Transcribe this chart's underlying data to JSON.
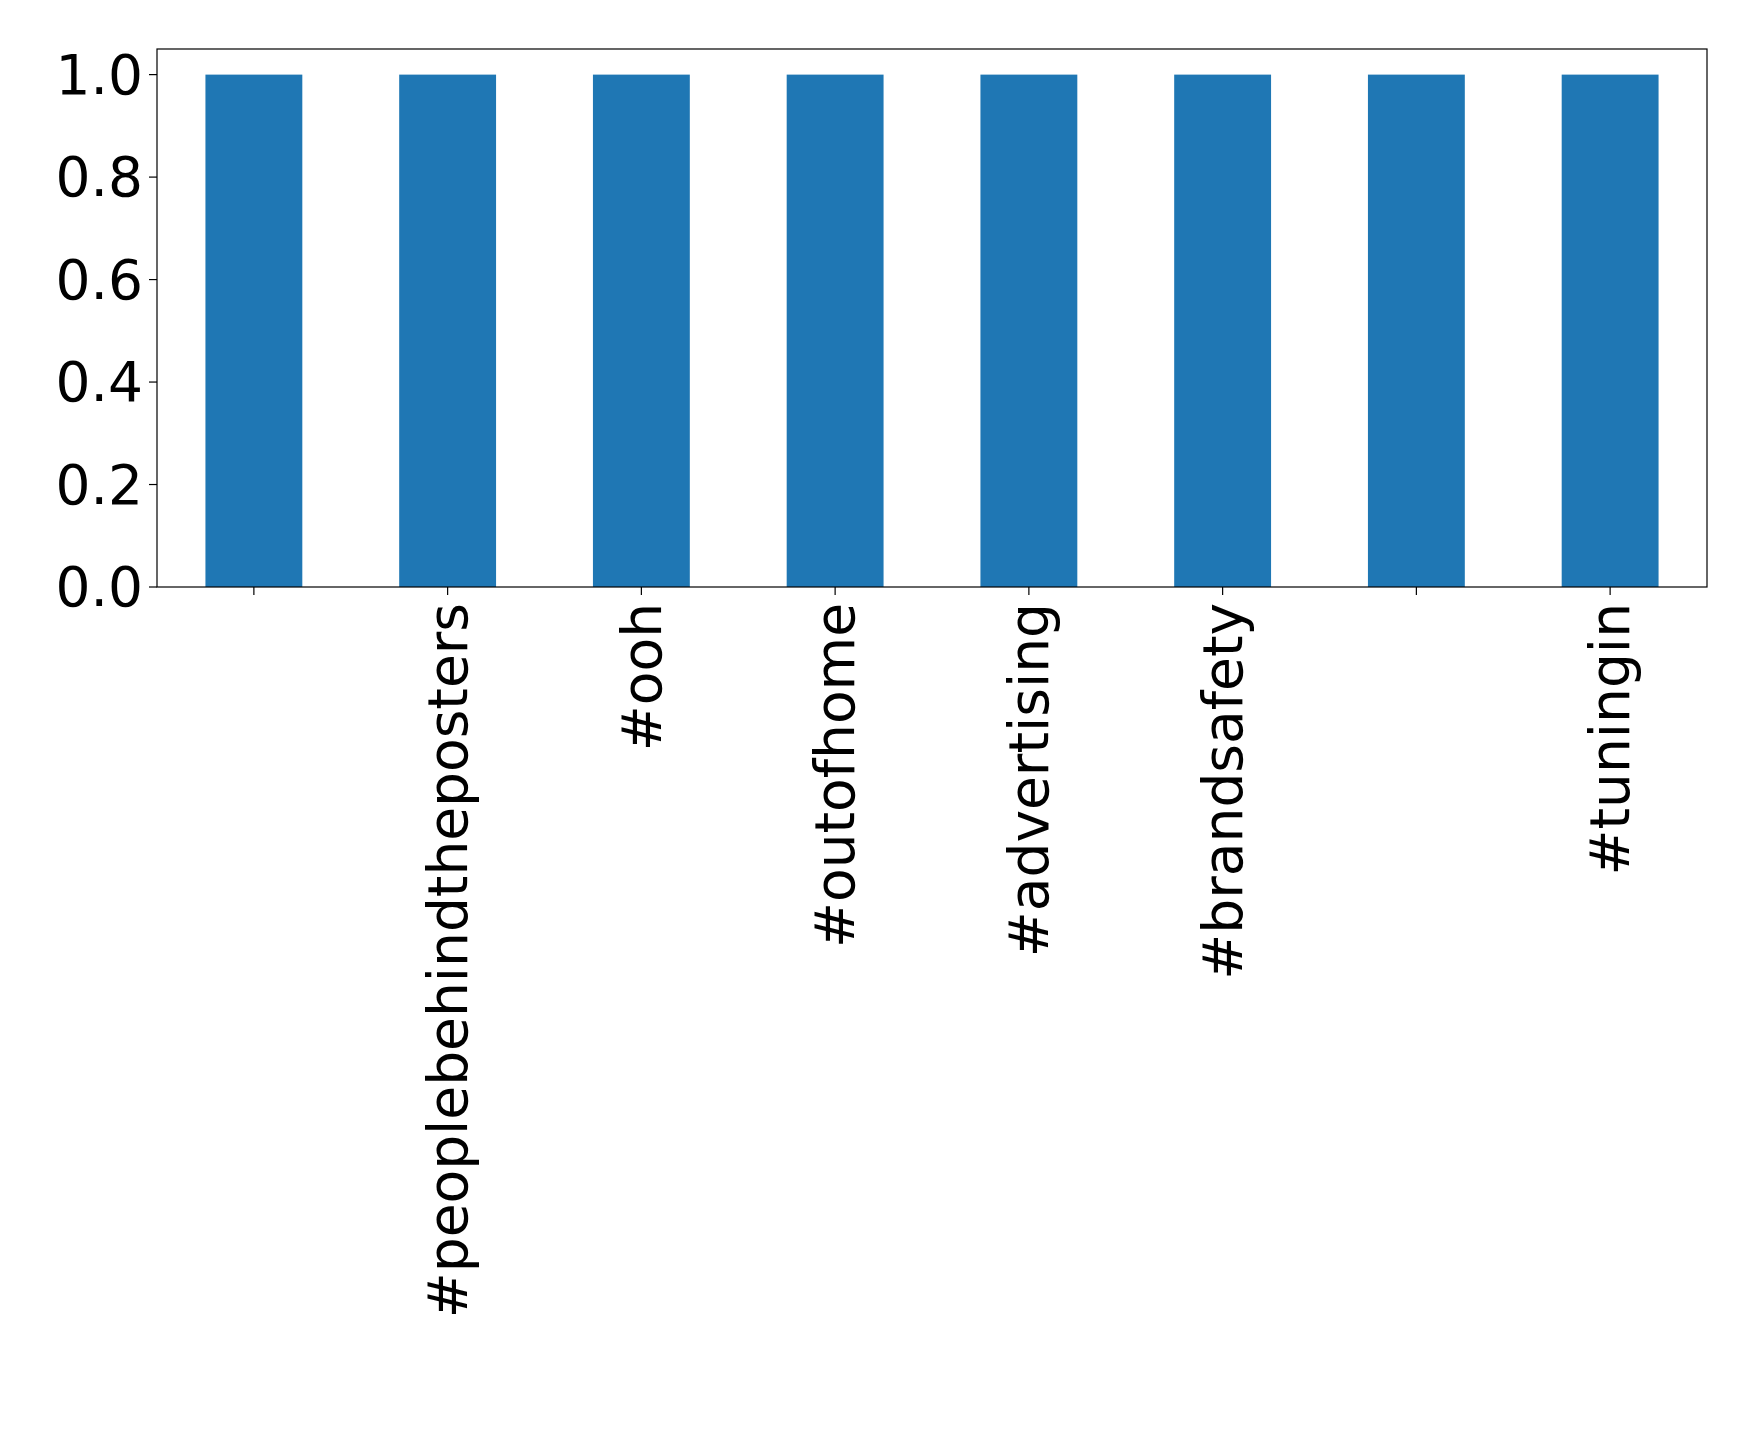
{
  "chart_data": {
    "type": "bar",
    "categories": [
      null,
      "#peoplebehindtheposters",
      "#ooh",
      "#outofhome",
      "#advertising",
      "#brandsafety",
      null,
      "#tuningin"
    ],
    "values": [
      1,
      1,
      1,
      1,
      1,
      1,
      1,
      1
    ],
    "color": "#1f77b4",
    "ylim": [
      0,
      1.05
    ],
    "yticks": [
      {
        "value": 0,
        "label": "0.0"
      },
      {
        "value": 0.2,
        "label": "0.2"
      },
      {
        "value": 0.4,
        "label": "0.4"
      },
      {
        "value": 0.6,
        "label": "0.6"
      },
      {
        "value": 0.8,
        "label": "0.8"
      },
      {
        "value": 1,
        "label": "1.0"
      }
    ],
    "grid": false
  }
}
